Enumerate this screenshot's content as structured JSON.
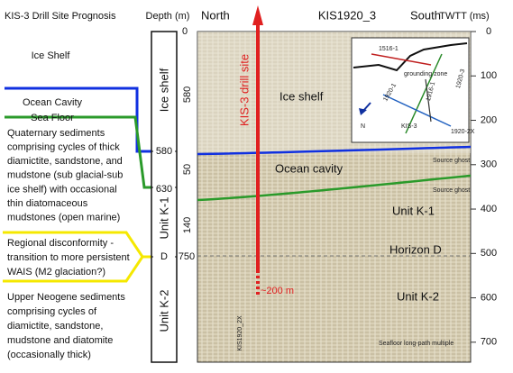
{
  "left_panel": {
    "title": "KIS-3 Drill Site Prognosis",
    "ice_shelf": "Ice Shelf",
    "ocean_cavity": "Ocean Cavity",
    "sea_floor": "Sea Floor",
    "quaternary": [
      "Quaternary sediments",
      "comprising cycles of thick",
      "diamictite, sandstone, and",
      "mudstone (sub glacial-sub",
      "ice shelf) with occasional",
      "thin diatomaceous",
      "mudstones (open marine)"
    ],
    "disconformity": [
      "Regional disconformity -",
      "transition to more persistent",
      "WAIS (M2 glaciation?)"
    ],
    "neogene": [
      "Upper Neogene sediments",
      "comprising cycles of",
      "diamictite, sandstone,",
      "mudstone and diatomite",
      "(occasionally thick)"
    ]
  },
  "depth_column": {
    "title": "Depth (m)",
    "boundaries": [
      "0",
      "580",
      "630",
      "D",
      "750"
    ],
    "thicknesses": [
      "580",
      "50",
      "140"
    ],
    "units": [
      "Ice shelf",
      "Unit K-1",
      "Unit K-2"
    ]
  },
  "seismic": {
    "left": "North",
    "title": "KIS1920_3",
    "right": "South",
    "axis_title": "TWTT (ms)",
    "ylim": [
      0,
      745
    ],
    "yticks": [
      0,
      100,
      200,
      300,
      400,
      500,
      600,
      700
    ],
    "drill_site": "KIS-3 drill site",
    "depth_note": "~200 m",
    "ice_shelf": "Ice shelf",
    "ocean_cavity": "Ocean cavity",
    "unit_k1": "Unit K-1",
    "horizon_d": "Horizon D",
    "unit_k2": "Unit K-2",
    "ghost_1": "Source ghost",
    "ghost_2": "Source ghost",
    "multiple": "Seafloor long-path multiple",
    "crossline": "KIS1920_2X",
    "inset": {
      "line_a": "1516-1",
      "grounding": "grounding zone",
      "line_b": "1920-3",
      "line_c": "1916-1",
      "line_d": "1920-2X",
      "line_e": "1920-1",
      "site": "KIS-3",
      "north": "N"
    }
  }
}
